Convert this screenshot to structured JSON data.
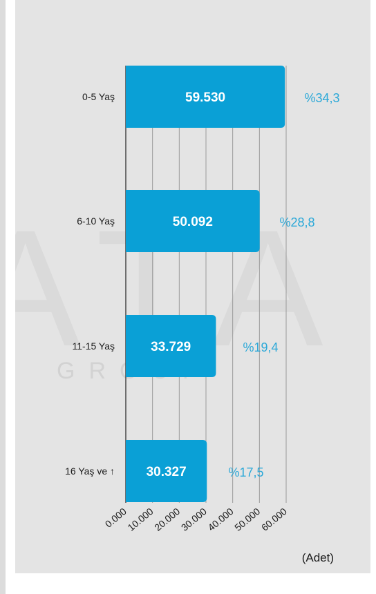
{
  "chart_data": {
    "type": "bar",
    "orientation": "horizontal",
    "categories": [
      "0-5 Yaş",
      "6-10 Yaş",
      "11-15 Yaş",
      "16 Yaş ve ↑"
    ],
    "values": [
      59530,
      50092,
      33729,
      30327
    ],
    "value_labels": [
      "59.530",
      "50.092",
      "33.729",
      "30.327"
    ],
    "percent_labels": [
      "%34,3",
      "%28,8",
      "%19,4",
      "%17,5"
    ],
    "xticks": [
      0,
      10000,
      20000,
      30000,
      40000,
      50000,
      60000
    ],
    "xtick_labels": [
      "0.000",
      "10.000",
      "20.000",
      "30.000",
      "40.000",
      "50.000",
      "60.000"
    ],
    "xlim": [
      0,
      60000
    ],
    "unit_label": "(Adet)",
    "title": "",
    "grid": true,
    "colors": {
      "bar": "#0aa0d6",
      "percent": "#2aa8d8",
      "background": "#e4e4e4"
    }
  },
  "watermark": {
    "main": "ATA",
    "sub": "GROUP"
  }
}
